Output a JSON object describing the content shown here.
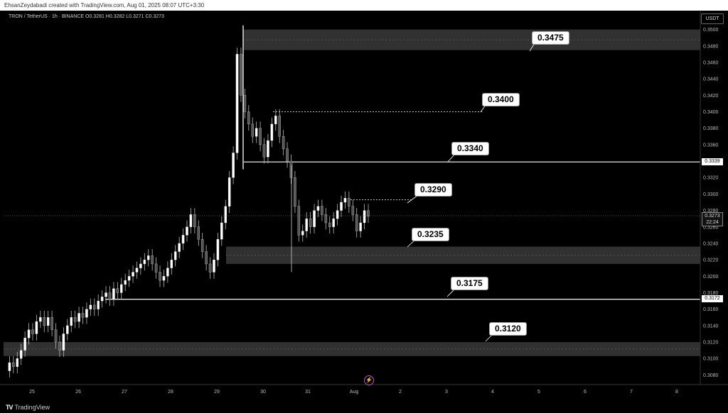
{
  "header": {
    "credit": "EhsanZeydabadi created with TradingView.com, Aug 01, 2025 08:07 UTC+3:30",
    "symbol_line": "TRON / TetherUS · 1h · BINANCE  O0.3281  H0.3282  L0.3271  C0.3273",
    "currency": "USDT"
  },
  "chart_data": {
    "type": "candlestick",
    "ylim": [
      0.307,
      0.351
    ],
    "price_ticks": [
      "0.3500",
      "0.3480",
      "0.3460",
      "0.3440",
      "0.3420",
      "0.3400",
      "0.3380",
      "0.3360",
      "0.3340",
      "0.3320",
      "0.3300",
      "0.3280",
      "0.3260",
      "0.3240",
      "0.3220",
      "0.3200",
      "0.3180",
      "0.3160",
      "0.3140",
      "0.3120",
      "0.3100",
      "0.3080"
    ],
    "x_ticks": [
      "25",
      "26",
      "27",
      "28",
      "29",
      "30",
      "31",
      "Aug",
      "2",
      "3",
      "4",
      "5",
      "6",
      "7",
      "8"
    ],
    "axis_badges": {
      "line_3339": "0.3339",
      "line_3172": "0.3172"
    },
    "current": {
      "price": "0.3273",
      "countdown": "22:24"
    },
    "zones": [
      {
        "name": "zone-3475",
        "top": 0.35,
        "bottom": 0.3475
      },
      {
        "name": "zone-3235",
        "top": 0.3236,
        "bottom": 0.3215
      },
      {
        "name": "zone-3120",
        "top": 0.312,
        "bottom": 0.3103
      }
    ],
    "levels": [
      {
        "name": "level-3339",
        "price": 0.3339,
        "style": "solid"
      },
      {
        "name": "level-3172",
        "price": 0.3172,
        "style": "solid"
      },
      {
        "name": "level-3400",
        "price": 0.34,
        "style": "dashed"
      },
      {
        "name": "level-3290",
        "price": 0.3293,
        "style": "dashed"
      }
    ],
    "labels": [
      "0.3475",
      "0.3400",
      "0.3340",
      "0.3290",
      "0.3235",
      "0.3175",
      "0.3120"
    ],
    "price_path": [
      [
        0.3085,
        0.3095,
        0.309,
        0.31,
        0.311,
        0.3125,
        0.3135,
        0.313,
        0.3145,
        0.315,
        0.314,
        0.315,
        0.3135,
        0.312,
        0.311,
        0.313,
        0.314,
        0.315,
        0.3145,
        0.3155,
        0.315,
        0.316,
        0.3165,
        0.316,
        0.317,
        0.3175,
        0.318,
        0.3172,
        0.3185,
        0.318,
        0.319,
        0.3195,
        0.32,
        0.3205,
        0.321,
        0.3215,
        0.322,
        0.3225,
        0.3215,
        0.3205,
        0.3195,
        0.32,
        0.321,
        0.322,
        0.323,
        0.324,
        0.325,
        0.326,
        0.3275,
        0.326,
        0.3245,
        0.323,
        0.3215,
        0.3205,
        0.322,
        0.3245,
        0.3265,
        0.3285,
        0.332,
        0.335,
        0.347,
        0.342,
        0.34,
        0.3385,
        0.337,
        0.338,
        0.336,
        0.3345,
        0.3365,
        0.3385,
        0.3395,
        0.337,
        0.3355,
        0.334,
        0.332,
        0.3285,
        0.325,
        0.3255,
        0.327,
        0.326,
        0.328,
        0.3285,
        0.3275,
        0.3265,
        0.326,
        0.327,
        0.328,
        0.329,
        0.3295,
        0.3285,
        0.3275,
        0.3255,
        0.3265,
        0.328,
        0.3273
      ]
    ]
  }
}
